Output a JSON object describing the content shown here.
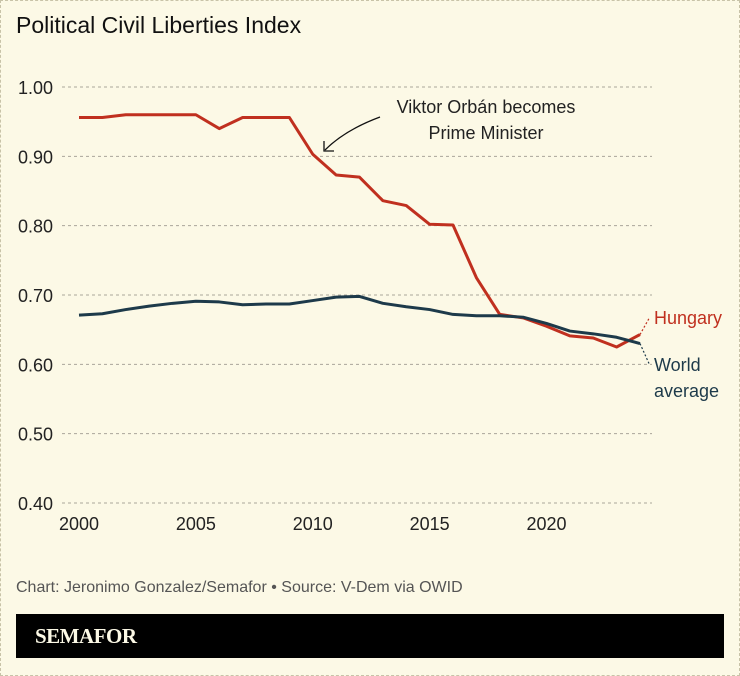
{
  "chart_data": {
    "type": "line",
    "title": "Political Civil Liberties Index",
    "xlabel": "",
    "ylabel": "",
    "x": [
      2000,
      2001,
      2002,
      2003,
      2004,
      2005,
      2006,
      2007,
      2008,
      2009,
      2010,
      2011,
      2012,
      2013,
      2014,
      2015,
      2016,
      2017,
      2018,
      2019,
      2020,
      2021,
      2022,
      2023,
      2024
    ],
    "xlim": [
      2000,
      2024
    ],
    "ylim": [
      0.4,
      1.0
    ],
    "xticks": [
      "2000",
      "2005",
      "2010",
      "2015",
      "2020"
    ],
    "yticks": [
      "1.00",
      "0.90",
      "0.80",
      "0.70",
      "0.60",
      "0.50",
      "0.40"
    ],
    "grid": true,
    "series": [
      {
        "name": "Hungary",
        "color": "#c0301f",
        "values": [
          0.956,
          0.956,
          0.96,
          0.96,
          0.96,
          0.96,
          0.94,
          0.956,
          0.956,
          0.956,
          0.903,
          0.873,
          0.87,
          0.836,
          0.829,
          0.802,
          0.801,
          0.725,
          0.672,
          0.667,
          0.655,
          0.641,
          0.638,
          0.625,
          0.643
        ]
      },
      {
        "name": "World average",
        "color": "#1d3a4a",
        "values": [
          0.671,
          0.673,
          0.679,
          0.684,
          0.688,
          0.691,
          0.69,
          0.686,
          0.687,
          0.687,
          0.692,
          0.697,
          0.698,
          0.688,
          0.683,
          0.679,
          0.672,
          0.67,
          0.67,
          0.668,
          0.659,
          0.648,
          0.644,
          0.639,
          0.63
        ]
      }
    ],
    "legend_labels": {
      "hungary": "Hungary",
      "world_line1": "World",
      "world_line2": "average"
    },
    "annotation": {
      "line1": "Viktor Orbán becomes",
      "line2": "Prime Minister",
      "year": 2010
    }
  },
  "footer": {
    "source": "Chart: Jeronimo Gonzalez/Semafor • Source: V-Dem via OWID",
    "logo": "SEMAFOR"
  }
}
